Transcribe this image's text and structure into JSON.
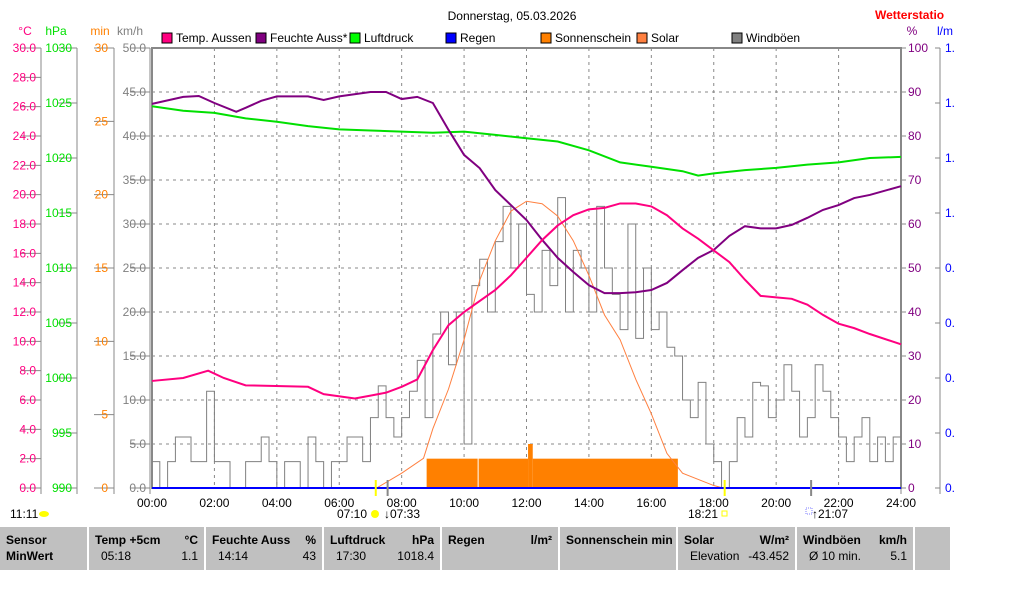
{
  "header": {
    "title": "Donnerstag, 05.03.2026",
    "station": "Wetterstatio"
  },
  "chart_data": {
    "type": "line",
    "title": "Donnerstag, 05.03.2026",
    "x_ticks": [
      "00:00",
      "02:00",
      "04:00",
      "06:00",
      "08:00",
      "10:00",
      "12:00",
      "14:00",
      "16:00",
      "18:00",
      "20:00",
      "22:00",
      "24:00"
    ],
    "xlim": [
      0,
      24
    ],
    "axes": {
      "temp": {
        "unit": "°C",
        "ylim": [
          0,
          30
        ],
        "ticks": [
          "0.0",
          "2.0",
          "4.0",
          "6.0",
          "8.0",
          "10.0",
          "12.0",
          "14.0",
          "16.0",
          "18.0",
          "20.0",
          "22.0",
          "24.0",
          "26.0",
          "28.0",
          "30.0"
        ],
        "color": "#ff0080"
      },
      "pressure": {
        "unit": "hPa",
        "ylim": [
          990,
          1030
        ],
        "ticks": [
          "990",
          "995",
          "1000",
          "1005",
          "1010",
          "1015",
          "1020",
          "1025",
          "1030"
        ],
        "color": "#00e000"
      },
      "sun": {
        "unit": "min",
        "ylim": [
          0,
          30
        ],
        "ticks": [
          "0",
          "5",
          "10",
          "15",
          "20",
          "25",
          "30"
        ],
        "color": "#ff8000"
      },
      "wind": {
        "unit": "km/h",
        "ylim": [
          0,
          50
        ],
        "ticks": [
          "0.0",
          "5.0",
          "10.0",
          "15.0",
          "20.0",
          "25.0",
          "30.0",
          "35.0",
          "40.0",
          "45.0",
          "50.0"
        ],
        "color": "#808080"
      },
      "humidity": {
        "unit": "%",
        "ylim": [
          0,
          100
        ],
        "ticks": [
          "0",
          "10",
          "20",
          "30",
          "40",
          "50",
          "60",
          "70",
          "80",
          "90",
          "100"
        ],
        "color": "#800080"
      },
      "rain": {
        "unit": "l/m",
        "ticks": [
          "0.",
          "0.",
          "0.",
          "0.",
          "0.",
          "1.",
          "1.",
          "1.",
          "1."
        ],
        "color": "#0000ff"
      }
    },
    "legend": [
      {
        "name": "Temp. Aussen",
        "color": "#ff0080"
      },
      {
        "name": "Feuchte Auss*",
        "color": "#800080"
      },
      {
        "name": "Luftdruck",
        "color": "#00ff00"
      },
      {
        "name": "Regen",
        "color": "#0000ff"
      },
      {
        "name": "Sonnenschein",
        "color": "#ff8000"
      },
      {
        "name": "Solar",
        "color": "#ff8040"
      },
      {
        "name": "Windböen",
        "color": "#808080"
      }
    ],
    "series": [
      {
        "name": "Temp. Aussen",
        "axis": "temp",
        "x": [
          0,
          1,
          1.8,
          2.3,
          3,
          5,
          5.5,
          6.5,
          7,
          7.5,
          8,
          8.5,
          9,
          9.5,
          10,
          11,
          11.5,
          12,
          12.5,
          13,
          13.5,
          14,
          14.5,
          15,
          15.5,
          16,
          16.5,
          17,
          17.5,
          18,
          18.5,
          19,
          19.5,
          20,
          20.5,
          21,
          21.5,
          22,
          22.5,
          23,
          24
        ],
        "y": [
          7.3,
          7.5,
          8.0,
          7.5,
          7.0,
          6.9,
          6.4,
          6.1,
          6.3,
          6.5,
          6.9,
          7.4,
          9.4,
          11.1,
          12.0,
          13.5,
          14.5,
          15.7,
          16.9,
          17.9,
          18.6,
          19.0,
          19.1,
          19.4,
          19.4,
          19.2,
          18.6,
          17.7,
          17.0,
          16.2,
          15.4,
          14.2,
          13.1,
          13.0,
          12.9,
          12.5,
          11.8,
          11.2,
          10.9,
          10.5,
          9.8
        ]
      },
      {
        "name": "Feuchte Auss*",
        "axis": "humidity",
        "x": [
          0,
          1,
          1.5,
          2,
          2.7,
          3,
          3.5,
          4,
          5,
          5.5,
          6,
          7,
          7.5,
          8,
          8.5,
          9,
          9.5,
          10,
          10.5,
          11,
          11.5,
          12,
          12.5,
          13,
          13.5,
          14,
          14.5,
          15,
          15.5,
          16,
          16.5,
          17,
          17.5,
          18,
          18.5,
          19,
          19.5,
          20,
          20.5,
          21,
          21.5,
          22,
          22.5,
          23,
          24
        ],
        "y": [
          87.3,
          88.9,
          89.1,
          87.5,
          85.5,
          86.4,
          88,
          89,
          89,
          88.2,
          89,
          90,
          90,
          88.4,
          88.9,
          87.5,
          81.4,
          75.7,
          72.7,
          67.7,
          64.3,
          60.9,
          56.4,
          52.3,
          49.1,
          46.1,
          44.3,
          44.3,
          44.5,
          45,
          46.6,
          49.5,
          52.3,
          54.1,
          57.3,
          59.5,
          59,
          59,
          59.8,
          61.4,
          63.2,
          64.3,
          65.9,
          66.6,
          68.6
        ]
      },
      {
        "name": "Luftdruck",
        "axis": "pressure",
        "x": [
          0,
          1,
          2,
          3,
          4,
          5,
          6,
          7,
          8,
          9,
          10,
          11,
          12,
          13,
          14,
          15,
          16,
          17,
          17.5,
          18,
          19,
          20,
          21,
          22,
          23,
          24
        ],
        "y": [
          1024.7,
          1024.3,
          1024.1,
          1023.6,
          1023.3,
          1022.9,
          1022.6,
          1022.5,
          1022.4,
          1022.3,
          1022.4,
          1022.1,
          1021.8,
          1021.5,
          1020.7,
          1019.6,
          1019.2,
          1018.8,
          1018.4,
          1018.6,
          1018.9,
          1019.1,
          1019.4,
          1019.6,
          1020,
          1020.1
        ]
      },
      {
        "name": "Regen",
        "axis": "rain",
        "x": [
          0,
          24
        ],
        "y": [
          0,
          0
        ]
      },
      {
        "name": "Solar",
        "axis": "solar",
        "ylim": [
          0,
          890
        ],
        "x": [
          7.2,
          8,
          8.7,
          9,
          9.5,
          10,
          10.5,
          11,
          11.5,
          12,
          12.5,
          13,
          13.5,
          14,
          14.5,
          15,
          15.5,
          16,
          16.5,
          17,
          18,
          18.3
        ],
        "y": [
          0,
          30,
          60,
          120,
          200,
          300,
          420,
          500,
          560,
          580,
          575,
          550,
          500,
          430,
          350,
          300,
          220,
          150,
          70,
          30,
          5,
          0
        ]
      },
      {
        "name": "Windböen",
        "axis": "wind",
        "x_start": 0,
        "x_step": 0.25,
        "y": [
          3,
          0,
          3,
          5.8,
          5.8,
          3,
          3,
          11,
          3,
          3,
          0,
          0,
          3,
          3,
          5.8,
          3,
          0,
          3,
          3,
          0,
          5.8,
          3,
          0,
          3,
          3,
          5.8,
          5.8,
          3,
          8,
          11.6,
          8,
          5.8,
          8,
          11,
          14.5,
          8,
          17.5,
          20,
          14,
          20,
          5,
          23,
          26,
          20,
          28,
          32,
          25,
          30,
          22,
          20,
          27,
          23,
          33,
          20,
          27,
          25,
          20,
          32,
          25,
          22,
          18,
          30,
          17,
          25,
          18,
          20,
          16,
          15,
          10,
          8,
          12,
          5,
          3,
          0,
          3,
          8,
          5.8,
          12,
          11.6,
          8,
          10,
          14,
          11,
          5.8,
          8,
          14,
          11,
          8,
          5.8,
          3,
          5.8,
          8,
          3,
          5.8,
          3,
          5.8,
          5.8
        ]
      }
    ],
    "sunshine_bars": [
      {
        "start": 8.8,
        "end": 12.05,
        "value": 2
      },
      {
        "start": 12.05,
        "end": 12.2,
        "value": 3
      },
      {
        "start": 12.2,
        "end": 16.85,
        "value": 2
      }
    ],
    "annotations": {
      "moon_time": "11:11",
      "sunrise": "07:10",
      "moonset": "07:33",
      "sunset": "18:21",
      "moonrise": "21:07"
    }
  },
  "table": {
    "columns": [
      {
        "title": "Sensor",
        "unit": "",
        "min_time": "MinWert",
        "min_value": ""
      },
      {
        "title": "Temp +5cm",
        "unit": "°C",
        "min_time": "05:18",
        "min_value": "1.1"
      },
      {
        "title": "Feuchte Auss",
        "unit": "%",
        "min_time": "14:14",
        "min_value": "43"
      },
      {
        "title": "Luftdruck",
        "unit": "hPa",
        "min_time": "17:30",
        "min_value": "1018.4"
      },
      {
        "title": "Regen",
        "unit": "l/m²",
        "min_time": "",
        "min_value": ""
      },
      {
        "title": "Sonnenschein min",
        "unit": "",
        "min_time": "",
        "min_value": ""
      },
      {
        "title": "Solar",
        "unit": "W/m²",
        "min_time": "Elevation",
        "min_value": "-43.452"
      },
      {
        "title": "Windböen",
        "unit": "km/h",
        "min_time": "Ø 10 min.",
        "min_value": "5.1"
      }
    ]
  }
}
